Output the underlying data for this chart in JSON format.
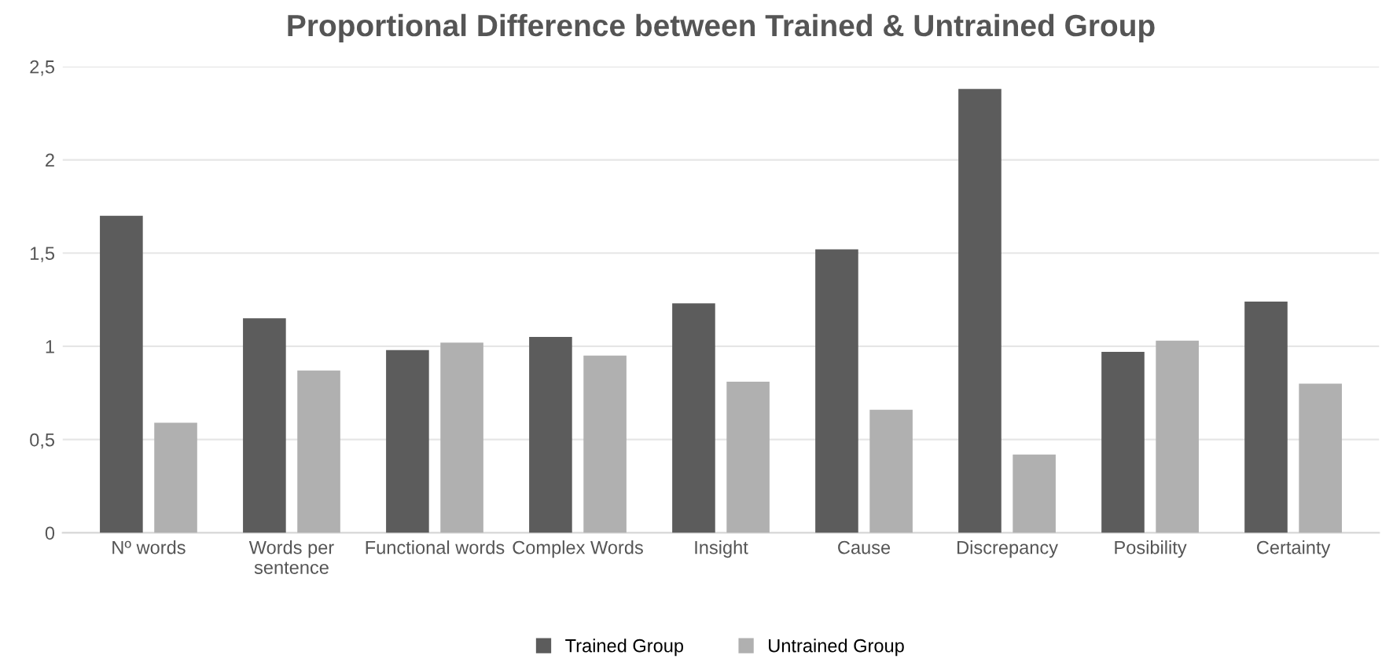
{
  "chart_data": {
    "type": "bar",
    "title": "Proportional Difference between Trained & Untrained Group",
    "categories": [
      "Nº words",
      "Words per\nsentence",
      "Functional words",
      "Complex Words",
      "Insight",
      "Cause",
      "Discrepancy",
      "Posibility",
      "Certainty"
    ],
    "series": [
      {
        "name": "Trained Group",
        "color": "#5c5c5c",
        "values": [
          1.7,
          1.15,
          0.98,
          1.05,
          1.23,
          1.52,
          2.38,
          0.97,
          1.24
        ]
      },
      {
        "name": "Untrained Group",
        "color": "#b0b0b0",
        "values": [
          0.59,
          0.87,
          1.02,
          0.95,
          0.81,
          0.66,
          0.42,
          1.03,
          0.8
        ]
      }
    ],
    "ylim": [
      0,
      2.5
    ],
    "yticks": [
      0,
      {
        "value": 0.5,
        "label": "0,5"
      },
      1,
      {
        "value": 1.5,
        "label": "1,5"
      },
      2,
      {
        "value": 2.5,
        "label": "2,5"
      }
    ],
    "grid": "y",
    "legend": "bottom"
  }
}
